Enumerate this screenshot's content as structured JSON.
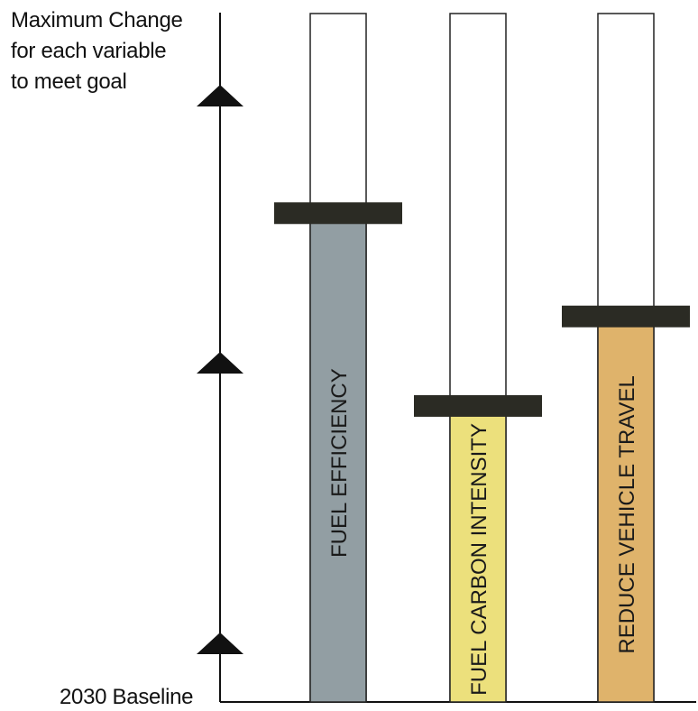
{
  "chart_data": {
    "type": "bar",
    "orientation": "vertical",
    "top_label": "Maximum Change\nfor each variable\nto meet goal",
    "bottom_label": "2030 Baseline",
    "axis_markers": [
      "up-arrow",
      "up-arrow",
      "up-arrow"
    ],
    "ylim": [
      0,
      1
    ],
    "grid": false,
    "categories": [
      "FUEL EFFICIENCY",
      "FUEL CARBON INTENSITY",
      "REDUCE VEHICLE TRAVEL"
    ],
    "values": [
      0.71,
      0.43,
      0.56
    ],
    "maximum": [
      1,
      1,
      1
    ],
    "colors": [
      "#929ea3",
      "#ece07c",
      "#dfb36b"
    ],
    "marker_color": "#2b2b24",
    "axis_color": "#111111"
  }
}
